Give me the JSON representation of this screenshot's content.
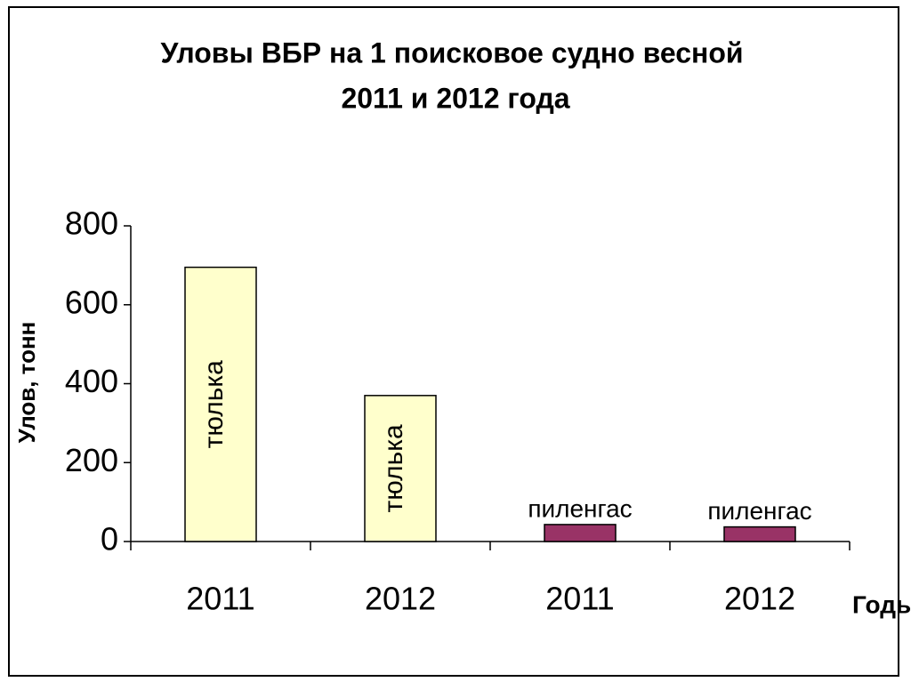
{
  "chart_data": {
    "type": "bar",
    "title": [
      "Уловы ВБР на 1 поисковое судно весной",
      "2011 и 2012 года"
    ],
    "y_label": "Улов, тонн",
    "x_label": "Годы",
    "categories": [
      "2011",
      "2012",
      "2011",
      "2012"
    ],
    "values": [
      695,
      370,
      43,
      37
    ],
    "bar_labels": [
      "тюлька",
      "тюлька",
      "пиленгас",
      "пиленгас"
    ],
    "colors": [
      "#ffffcc",
      "#ffffcc",
      "#993366",
      "#993366"
    ],
    "ylim": [
      0,
      800
    ],
    "yticks": [
      0,
      200,
      400,
      600,
      800
    ],
    "grid": false
  }
}
